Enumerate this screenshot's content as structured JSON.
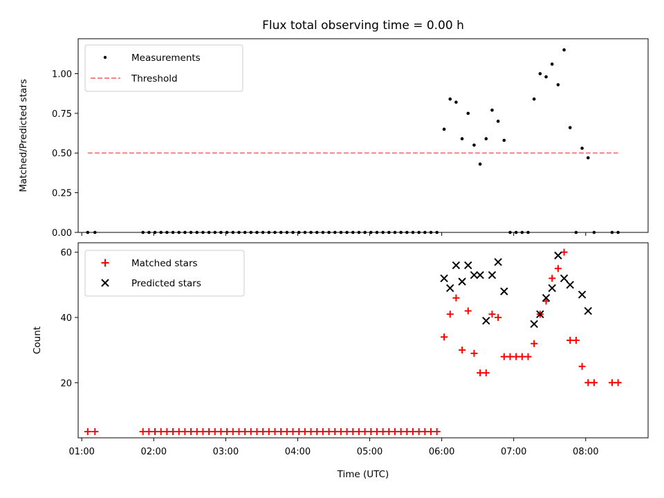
{
  "chart_data": [
    {
      "type": "scatter",
      "title": "Flux total observing time = 0.00 h",
      "xlabel": "",
      "ylabel": "Matched/Predicted stars",
      "xlim": [
        "00:57",
        "08:52"
      ],
      "ylim": [
        0,
        1.22
      ],
      "yticks": [
        0,
        0.25,
        0.5,
        0.75,
        1.0
      ],
      "ytick_labels": [
        "0.00",
        "0.25",
        "0.50",
        "0.75",
        "1.00"
      ],
      "xticks": [
        "01:00",
        "02:00",
        "03:00",
        "04:00",
        "05:00",
        "06:00",
        "07:00",
        "08:00"
      ],
      "xtick_labels": [
        "",
        "",
        "",
        "",
        "",
        "",
        "",
        ""
      ],
      "grid": false,
      "legend_position": "top-left",
      "series": [
        {
          "name": "Measurements",
          "kind": "points",
          "color": "#000000",
          "points": [
            [
              "01:05",
              0
            ],
            [
              "01:11",
              0
            ],
            [
              "01:51",
              0
            ],
            [
              "01:56",
              0
            ],
            [
              "02:01",
              0
            ],
            [
              "02:06",
              0
            ],
            [
              "02:11",
              0
            ],
            [
              "02:16",
              0
            ],
            [
              "02:21",
              0
            ],
            [
              "02:26",
              0
            ],
            [
              "02:31",
              0
            ],
            [
              "02:36",
              0
            ],
            [
              "02:41",
              0
            ],
            [
              "02:46",
              0
            ],
            [
              "02:51",
              0
            ],
            [
              "02:56",
              0
            ],
            [
              "03:01",
              0
            ],
            [
              "03:06",
              0
            ],
            [
              "03:11",
              0
            ],
            [
              "03:16",
              0
            ],
            [
              "03:21",
              0
            ],
            [
              "03:26",
              0
            ],
            [
              "03:31",
              0
            ],
            [
              "03:36",
              0
            ],
            [
              "03:41",
              0
            ],
            [
              "03:46",
              0
            ],
            [
              "03:51",
              0
            ],
            [
              "03:56",
              0
            ],
            [
              "04:01",
              0
            ],
            [
              "04:06",
              0
            ],
            [
              "04:11",
              0
            ],
            [
              "04:16",
              0
            ],
            [
              "04:21",
              0
            ],
            [
              "04:26",
              0
            ],
            [
              "04:31",
              0
            ],
            [
              "04:36",
              0
            ],
            [
              "04:41",
              0
            ],
            [
              "04:46",
              0
            ],
            [
              "04:51",
              0
            ],
            [
              "04:56",
              0
            ],
            [
              "05:01",
              0
            ],
            [
              "05:06",
              0
            ],
            [
              "05:11",
              0
            ],
            [
              "05:16",
              0
            ],
            [
              "05:21",
              0
            ],
            [
              "05:26",
              0
            ],
            [
              "05:31",
              0
            ],
            [
              "05:36",
              0
            ],
            [
              "05:41",
              0
            ],
            [
              "05:46",
              0
            ],
            [
              "05:51",
              0
            ],
            [
              "05:56",
              0
            ],
            [
              "06:02",
              0.65
            ],
            [
              "06:07",
              0.84
            ],
            [
              "06:12",
              0.82
            ],
            [
              "06:17",
              0.59
            ],
            [
              "06:22",
              0.75
            ],
            [
              "06:27",
              0.55
            ],
            [
              "06:32",
              0.43
            ],
            [
              "06:37",
              0.59
            ],
            [
              "06:42",
              0.77
            ],
            [
              "06:47",
              0.7
            ],
            [
              "06:52",
              0.58
            ],
            [
              "06:57",
              0
            ],
            [
              "07:02",
              0
            ],
            [
              "07:07",
              0
            ],
            [
              "07:12",
              0
            ],
            [
              "07:17",
              0.84
            ],
            [
              "07:22",
              1.0
            ],
            [
              "07:27",
              0.98
            ],
            [
              "07:32",
              1.06
            ],
            [
              "07:37",
              0.93
            ],
            [
              "07:42",
              1.15
            ],
            [
              "07:47",
              0.66
            ],
            [
              "07:52",
              0
            ],
            [
              "07:57",
              0.53
            ],
            [
              "08:02",
              0.47
            ],
            [
              "08:07",
              0
            ],
            [
              "08:22",
              0
            ],
            [
              "08:27",
              0
            ]
          ]
        },
        {
          "name": "Threshold",
          "kind": "dashed-line",
          "color": "#ff8080",
          "x": [
            "01:05",
            "08:27"
          ],
          "y": [
            0.5,
            0.5
          ]
        }
      ]
    },
    {
      "type": "scatter",
      "title": "",
      "xlabel": "Time (UTC)",
      "ylabel": "Count",
      "xlim": [
        "00:57",
        "08:52"
      ],
      "ylim": [
        3.1,
        62.9
      ],
      "yticks": [
        20,
        40,
        60
      ],
      "ytick_labels": [
        "20",
        "40",
        "60"
      ],
      "xticks": [
        "01:00",
        "02:00",
        "03:00",
        "04:00",
        "05:00",
        "06:00",
        "07:00",
        "08:00"
      ],
      "xtick_labels": [
        "01:00",
        "02:00",
        "03:00",
        "04:00",
        "05:00",
        "06:00",
        "07:00",
        "08:00"
      ],
      "grid": false,
      "legend_position": "top-left",
      "series": [
        {
          "name": "Matched stars",
          "kind": "plus",
          "color": "#ff0000",
          "points": [
            [
              "01:05",
              5
            ],
            [
              "01:11",
              5
            ],
            [
              "01:51",
              5
            ],
            [
              "01:56",
              5
            ],
            [
              "02:01",
              5
            ],
            [
              "02:06",
              5
            ],
            [
              "02:11",
              5
            ],
            [
              "02:16",
              5
            ],
            [
              "02:21",
              5
            ],
            [
              "02:26",
              5
            ],
            [
              "02:31",
              5
            ],
            [
              "02:36",
              5
            ],
            [
              "02:41",
              5
            ],
            [
              "02:46",
              5
            ],
            [
              "02:51",
              5
            ],
            [
              "02:56",
              5
            ],
            [
              "03:01",
              5
            ],
            [
              "03:06",
              5
            ],
            [
              "03:11",
              5
            ],
            [
              "03:16",
              5
            ],
            [
              "03:21",
              5
            ],
            [
              "03:26",
              5
            ],
            [
              "03:31",
              5
            ],
            [
              "03:36",
              5
            ],
            [
              "03:41",
              5
            ],
            [
              "03:46",
              5
            ],
            [
              "03:51",
              5
            ],
            [
              "03:56",
              5
            ],
            [
              "04:01",
              5
            ],
            [
              "04:06",
              5
            ],
            [
              "04:11",
              5
            ],
            [
              "04:16",
              5
            ],
            [
              "04:21",
              5
            ],
            [
              "04:26",
              5
            ],
            [
              "04:31",
              5
            ],
            [
              "04:36",
              5
            ],
            [
              "04:41",
              5
            ],
            [
              "04:46",
              5
            ],
            [
              "04:51",
              5
            ],
            [
              "04:56",
              5
            ],
            [
              "05:01",
              5
            ],
            [
              "05:06",
              5
            ],
            [
              "05:11",
              5
            ],
            [
              "05:16",
              5
            ],
            [
              "05:21",
              5
            ],
            [
              "05:26",
              5
            ],
            [
              "05:31",
              5
            ],
            [
              "05:36",
              5
            ],
            [
              "05:41",
              5
            ],
            [
              "05:46",
              5
            ],
            [
              "05:51",
              5
            ],
            [
              "05:56",
              5
            ],
            [
              "06:02",
              34
            ],
            [
              "06:07",
              41
            ],
            [
              "06:12",
              46
            ],
            [
              "06:17",
              30
            ],
            [
              "06:22",
              42
            ],
            [
              "06:27",
              29
            ],
            [
              "06:32",
              23
            ],
            [
              "06:37",
              23
            ],
            [
              "06:42",
              41
            ],
            [
              "06:47",
              40
            ],
            [
              "06:52",
              28
            ],
            [
              "06:57",
              28
            ],
            [
              "07:02",
              28
            ],
            [
              "07:07",
              28
            ],
            [
              "07:12",
              28
            ],
            [
              "07:17",
              32
            ],
            [
              "07:22",
              41
            ],
            [
              "07:27",
              45
            ],
            [
              "07:32",
              52
            ],
            [
              "07:37",
              55
            ],
            [
              "07:42",
              60
            ],
            [
              "07:47",
              33
            ],
            [
              "07:52",
              33
            ],
            [
              "07:57",
              25
            ],
            [
              "08:02",
              20
            ],
            [
              "08:07",
              20
            ],
            [
              "08:22",
              20
            ],
            [
              "08:27",
              20
            ]
          ]
        },
        {
          "name": "Predicted stars",
          "kind": "x",
          "color": "#000000",
          "points": [
            [
              "06:02",
              52
            ],
            [
              "06:07",
              49
            ],
            [
              "06:12",
              56
            ],
            [
              "06:17",
              51
            ],
            [
              "06:22",
              56
            ],
            [
              "06:27",
              53
            ],
            [
              "06:32",
              53
            ],
            [
              "06:37",
              39
            ],
            [
              "06:42",
              53
            ],
            [
              "06:47",
              57
            ],
            [
              "06:52",
              48
            ],
            [
              "07:17",
              38
            ],
            [
              "07:22",
              41
            ],
            [
              "07:27",
              46
            ],
            [
              "07:32",
              49
            ],
            [
              "07:37",
              59
            ],
            [
              "07:42",
              52
            ],
            [
              "07:47",
              50
            ],
            [
              "07:57",
              47
            ],
            [
              "08:02",
              42
            ]
          ]
        }
      ]
    }
  ]
}
